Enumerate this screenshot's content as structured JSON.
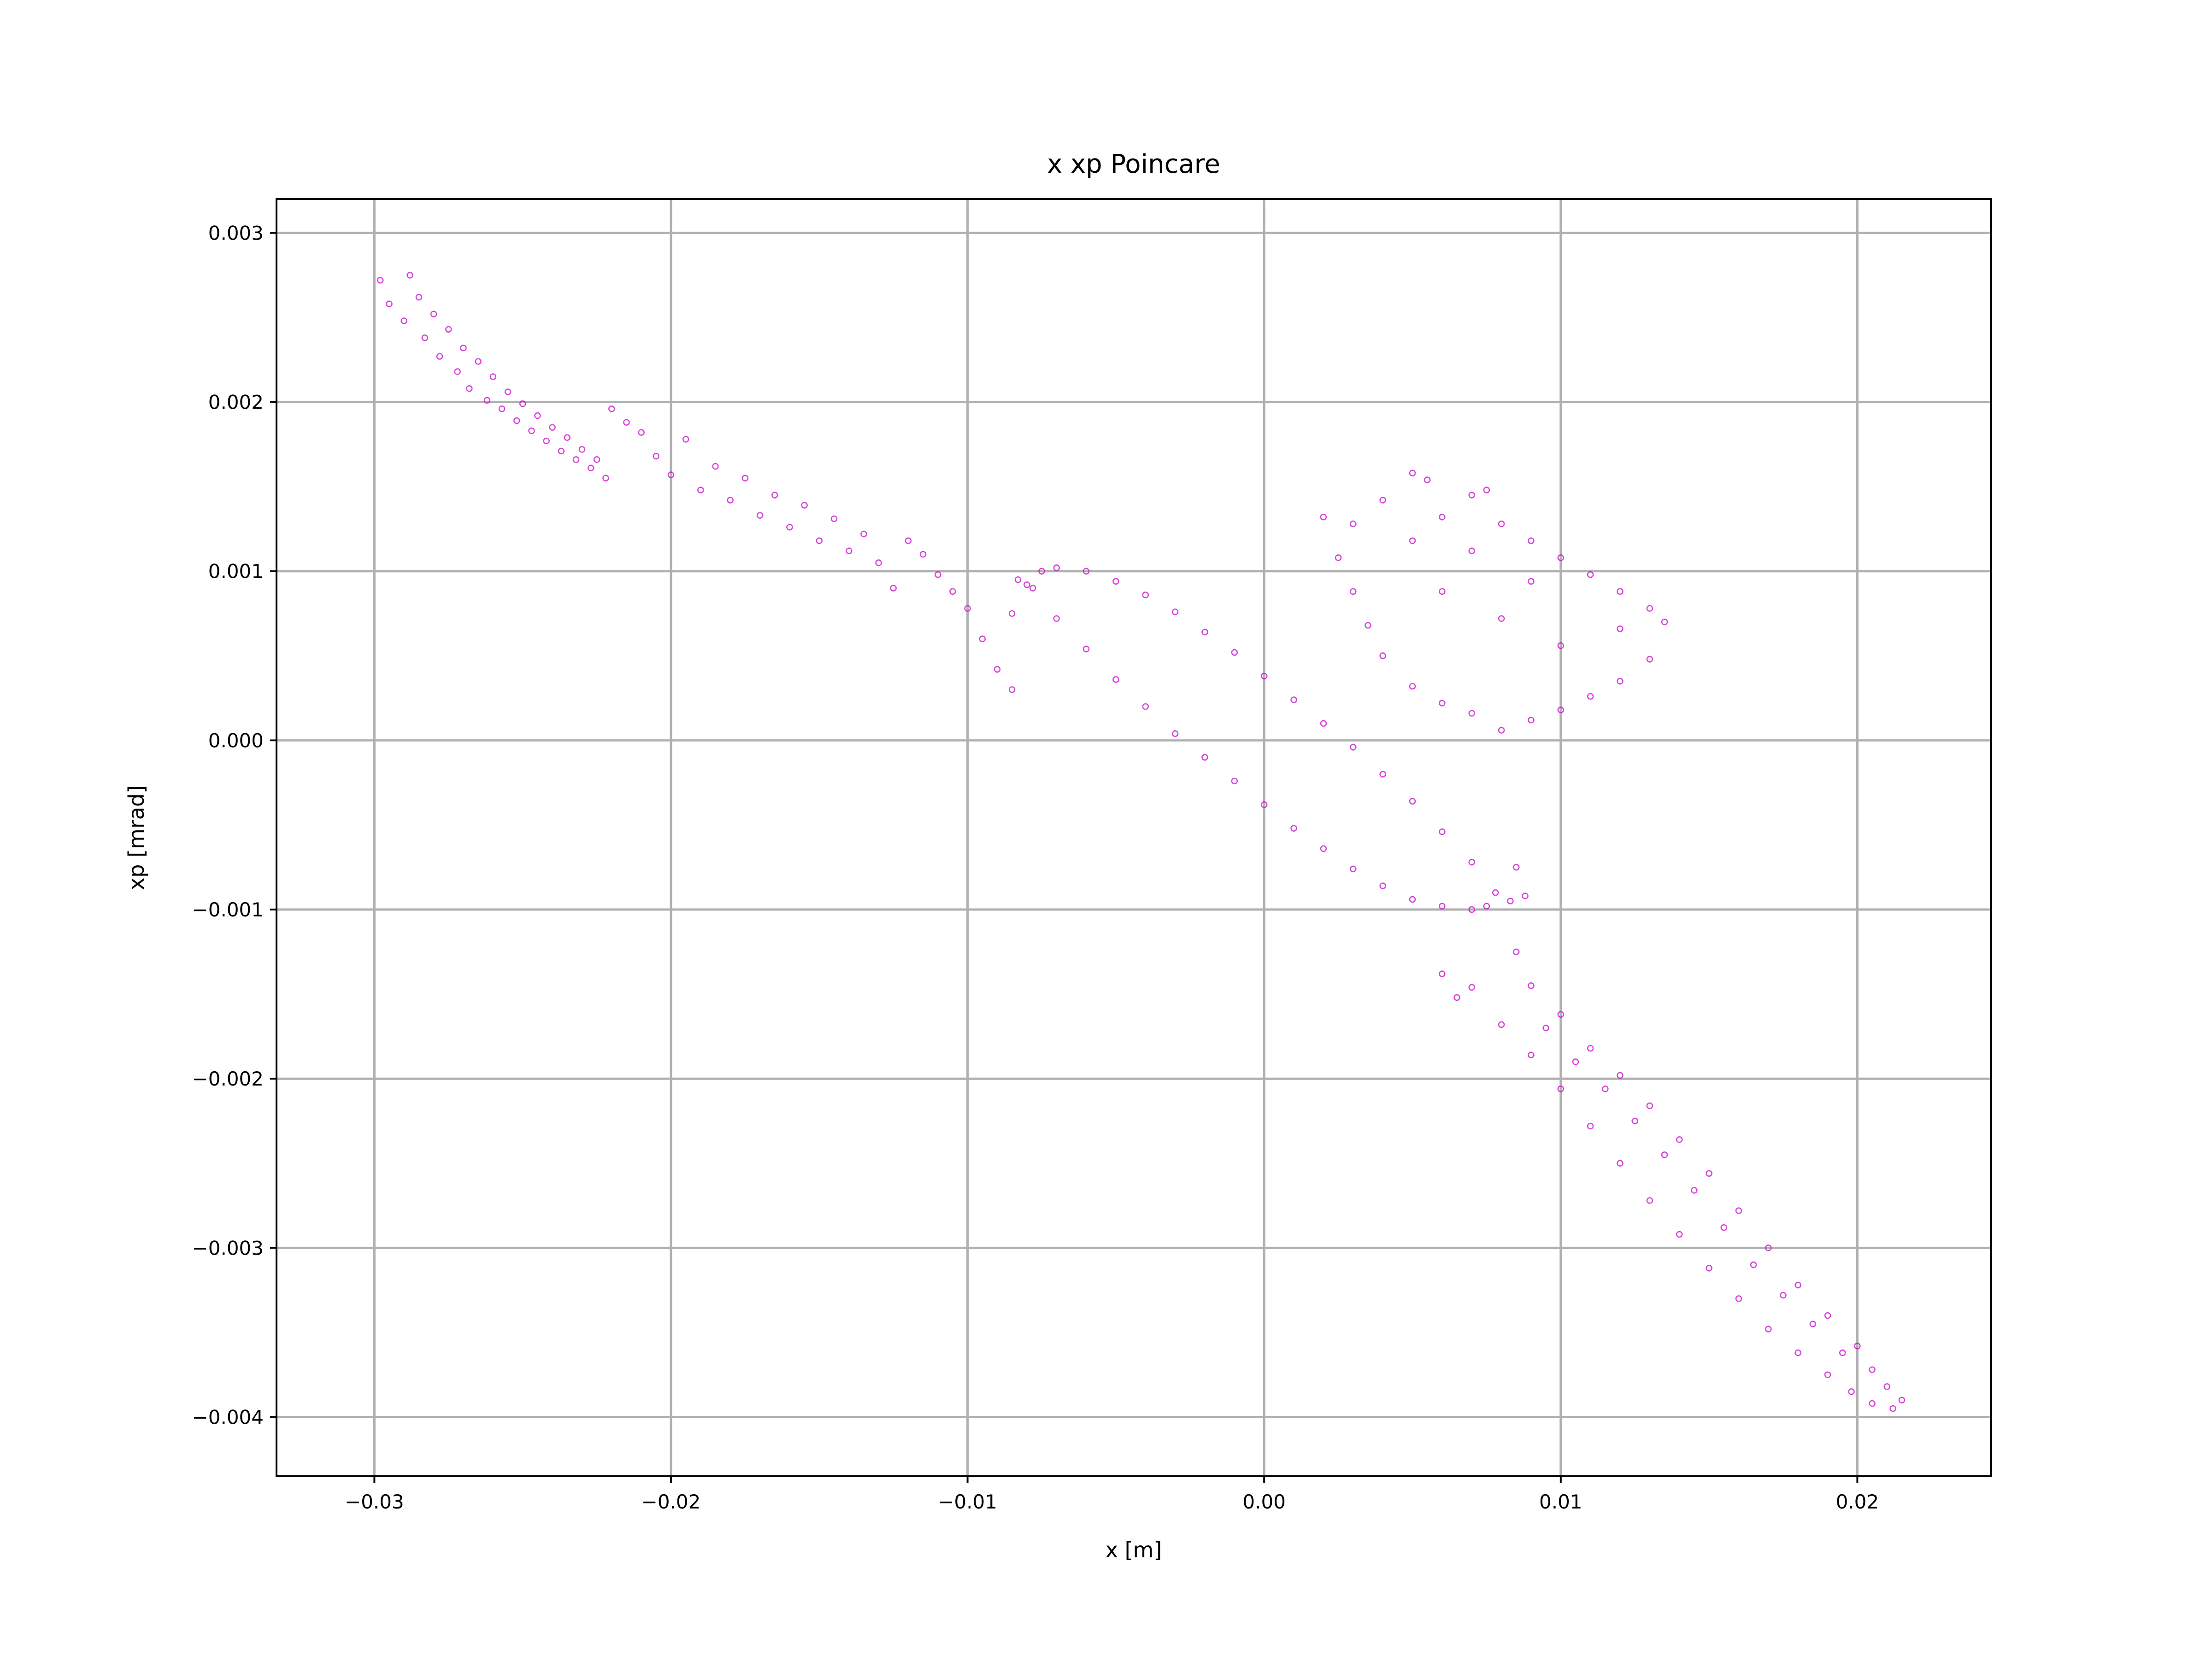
{
  "chart_data": {
    "type": "scatter",
    "title": "x xp Poincare",
    "xlabel": "x [m]",
    "ylabel": "xp [mrad]",
    "xlim": [
      -0.0333,
      0.0245
    ],
    "ylim": [
      -0.00435,
      0.0032
    ],
    "x_ticks": [
      -0.03,
      -0.02,
      -0.01,
      0.0,
      0.01,
      0.02
    ],
    "x_tick_labels": [
      "−0.03",
      "−0.02",
      "−0.01",
      "0.00",
      "0.01",
      "0.02"
    ],
    "y_ticks": [
      0.003,
      0.002,
      0.001,
      0.0,
      -0.001,
      -0.002,
      -0.003,
      -0.004
    ],
    "y_tick_labels": [
      "0.003",
      "0.002",
      "0.001",
      "0.000",
      "−0.001",
      "−0.002",
      "−0.003",
      "−0.004"
    ],
    "grid": true,
    "legend": "none",
    "marker_color": "#cc00cc",
    "series": [
      {
        "values": [
          [
            -0.0298,
            0.00272
          ],
          [
            -0.0295,
            0.00258
          ],
          [
            -0.029,
            0.00248
          ],
          [
            -0.0288,
            0.00275
          ],
          [
            -0.0285,
            0.00262
          ],
          [
            -0.0283,
            0.00238
          ],
          [
            -0.028,
            0.00252
          ],
          [
            -0.0278,
            0.00227
          ],
          [
            -0.0275,
            0.00243
          ],
          [
            -0.0272,
            0.00218
          ],
          [
            -0.027,
            0.00232
          ],
          [
            -0.0268,
            0.00208
          ],
          [
            -0.0265,
            0.00224
          ],
          [
            -0.0262,
            0.00201
          ],
          [
            -0.026,
            0.00215
          ],
          [
            -0.0257,
            0.00196
          ],
          [
            -0.0255,
            0.00206
          ],
          [
            -0.0252,
            0.00189
          ],
          [
            -0.025,
            0.00199
          ],
          [
            -0.0247,
            0.00183
          ],
          [
            -0.0245,
            0.00192
          ],
          [
            -0.0242,
            0.00177
          ],
          [
            -0.024,
            0.00185
          ],
          [
            -0.0237,
            0.00171
          ],
          [
            -0.0235,
            0.00179
          ],
          [
            -0.0232,
            0.00166
          ],
          [
            -0.023,
            0.00172
          ],
          [
            -0.0227,
            0.00161
          ],
          [
            -0.0225,
            0.00166
          ],
          [
            -0.0222,
            0.00155
          ],
          [
            -0.022,
            0.00196
          ],
          [
            -0.0215,
            0.00188
          ],
          [
            -0.021,
            0.00182
          ],
          [
            -0.0205,
            0.00168
          ],
          [
            -0.02,
            0.00157
          ],
          [
            -0.0195,
            0.00178
          ],
          [
            -0.019,
            0.00148
          ],
          [
            -0.0185,
            0.00162
          ],
          [
            -0.018,
            0.00142
          ],
          [
            -0.0175,
            0.00155
          ],
          [
            -0.017,
            0.00133
          ],
          [
            -0.0165,
            0.00145
          ],
          [
            -0.016,
            0.00126
          ],
          [
            -0.0155,
            0.00139
          ],
          [
            -0.015,
            0.00118
          ],
          [
            -0.0145,
            0.00131
          ],
          [
            -0.014,
            0.00112
          ],
          [
            -0.0135,
            0.00122
          ],
          [
            -0.013,
            0.00105
          ],
          [
            -0.0125,
            0.0009
          ],
          [
            -0.012,
            0.00118
          ],
          [
            -0.0115,
            0.0011
          ],
          [
            -0.011,
            0.00098
          ],
          [
            -0.0105,
            0.00088
          ],
          [
            -0.01,
            0.00078
          ],
          [
            -0.0095,
            0.0006
          ],
          [
            -0.009,
            0.00042
          ],
          [
            -0.0085,
            0.0003
          ],
          [
            -0.008,
            0.00092
          ],
          [
            -0.0075,
            0.001
          ],
          [
            -0.007,
            0.00102
          ],
          [
            -0.006,
            0.001
          ],
          [
            -0.005,
            0.00094
          ],
          [
            -0.004,
            0.00086
          ],
          [
            -0.003,
            0.00076
          ],
          [
            -0.002,
            0.00064
          ],
          [
            -0.001,
            0.00052
          ],
          [
            0.0,
            0.00038
          ],
          [
            0.001,
            0.00024
          ],
          [
            0.002,
            0.0001
          ],
          [
            0.003,
            -4e-05
          ],
          [
            0.004,
            -0.0002
          ],
          [
            0.005,
            -0.00036
          ],
          [
            0.006,
            -0.00054
          ],
          [
            0.007,
            -0.00072
          ],
          [
            0.0078,
            -0.0009
          ],
          [
            0.0075,
            -0.00098
          ],
          [
            0.007,
            -0.001
          ],
          [
            0.006,
            -0.00098
          ],
          [
            0.005,
            -0.00094
          ],
          [
            0.004,
            -0.00086
          ],
          [
            0.003,
            -0.00076
          ],
          [
            0.002,
            -0.00064
          ],
          [
            0.001,
            -0.00052
          ],
          [
            0.0,
            -0.00038
          ],
          [
            -0.001,
            -0.00024
          ],
          [
            -0.002,
            -0.0001
          ],
          [
            -0.003,
            4e-05
          ],
          [
            -0.004,
            0.0002
          ],
          [
            -0.005,
            0.00036
          ],
          [
            -0.006,
            0.00054
          ],
          [
            -0.007,
            0.00072
          ],
          [
            -0.0078,
            0.0009
          ],
          [
            -0.0085,
            0.00075
          ],
          [
            -0.0083,
            0.00095
          ],
          [
            0.0083,
            -0.00095
          ],
          [
            0.0088,
            -0.00092
          ],
          [
            0.0085,
            -0.00075
          ],
          [
            0.002,
            0.00132
          ],
          [
            0.003,
            0.00128
          ],
          [
            0.004,
            0.00142
          ],
          [
            0.005,
            0.00158
          ],
          [
            0.0055,
            0.00154
          ],
          [
            0.006,
            0.00132
          ],
          [
            0.007,
            0.00145
          ],
          [
            0.0075,
            0.00148
          ],
          [
            0.008,
            0.00128
          ],
          [
            0.009,
            0.00118
          ],
          [
            0.01,
            0.00108
          ],
          [
            0.011,
            0.00098
          ],
          [
            0.012,
            0.00088
          ],
          [
            0.013,
            0.00078
          ],
          [
            0.0135,
            0.0007
          ],
          [
            0.013,
            0.00048
          ],
          [
            0.012,
            0.00035
          ],
          [
            0.011,
            0.00026
          ],
          [
            0.01,
            0.00018
          ],
          [
            0.009,
            0.00012
          ],
          [
            0.008,
            6e-05
          ],
          [
            0.007,
            0.00016
          ],
          [
            0.006,
            0.00022
          ],
          [
            0.005,
            0.00032
          ],
          [
            0.004,
            0.0005
          ],
          [
            0.0035,
            0.00068
          ],
          [
            0.003,
            0.00088
          ],
          [
            0.0025,
            0.00108
          ],
          [
            0.006,
            0.00088
          ],
          [
            0.008,
            0.00072
          ],
          [
            0.01,
            0.00056
          ],
          [
            0.012,
            0.00066
          ],
          [
            0.009,
            0.00094
          ],
          [
            0.007,
            0.00112
          ],
          [
            0.005,
            0.00118
          ],
          [
            0.0085,
            -0.00125
          ],
          [
            0.009,
            -0.00145
          ],
          [
            0.0095,
            -0.0017
          ],
          [
            0.01,
            -0.00162
          ],
          [
            0.0105,
            -0.0019
          ],
          [
            0.011,
            -0.00182
          ],
          [
            0.0115,
            -0.00206
          ],
          [
            0.012,
            -0.00198
          ],
          [
            0.0125,
            -0.00225
          ],
          [
            0.013,
            -0.00216
          ],
          [
            0.0135,
            -0.00245
          ],
          [
            0.014,
            -0.00236
          ],
          [
            0.0145,
            -0.00266
          ],
          [
            0.015,
            -0.00256
          ],
          [
            0.0155,
            -0.00288
          ],
          [
            0.016,
            -0.00278
          ],
          [
            0.0165,
            -0.0031
          ],
          [
            0.017,
            -0.003
          ],
          [
            0.0175,
            -0.00328
          ],
          [
            0.018,
            -0.00322
          ],
          [
            0.0185,
            -0.00345
          ],
          [
            0.019,
            -0.0034
          ],
          [
            0.0195,
            -0.00362
          ],
          [
            0.02,
            -0.00358
          ],
          [
            0.0205,
            -0.00372
          ],
          [
            0.021,
            -0.00382
          ],
          [
            0.0215,
            -0.0039
          ],
          [
            0.0212,
            -0.00395
          ],
          [
            0.0205,
            -0.00392
          ],
          [
            0.0198,
            -0.00385
          ],
          [
            0.019,
            -0.00375
          ],
          [
            0.018,
            -0.00362
          ],
          [
            0.017,
            -0.00348
          ],
          [
            0.016,
            -0.0033
          ],
          [
            0.015,
            -0.00312
          ],
          [
            0.014,
            -0.00292
          ],
          [
            0.013,
            -0.00272
          ],
          [
            0.012,
            -0.0025
          ],
          [
            0.011,
            -0.00228
          ],
          [
            0.01,
            -0.00206
          ],
          [
            0.009,
            -0.00186
          ],
          [
            0.008,
            -0.00168
          ],
          [
            0.007,
            -0.00146
          ],
          [
            0.006,
            -0.00138
          ],
          [
            0.0065,
            -0.00152
          ]
        ]
      }
    ]
  }
}
